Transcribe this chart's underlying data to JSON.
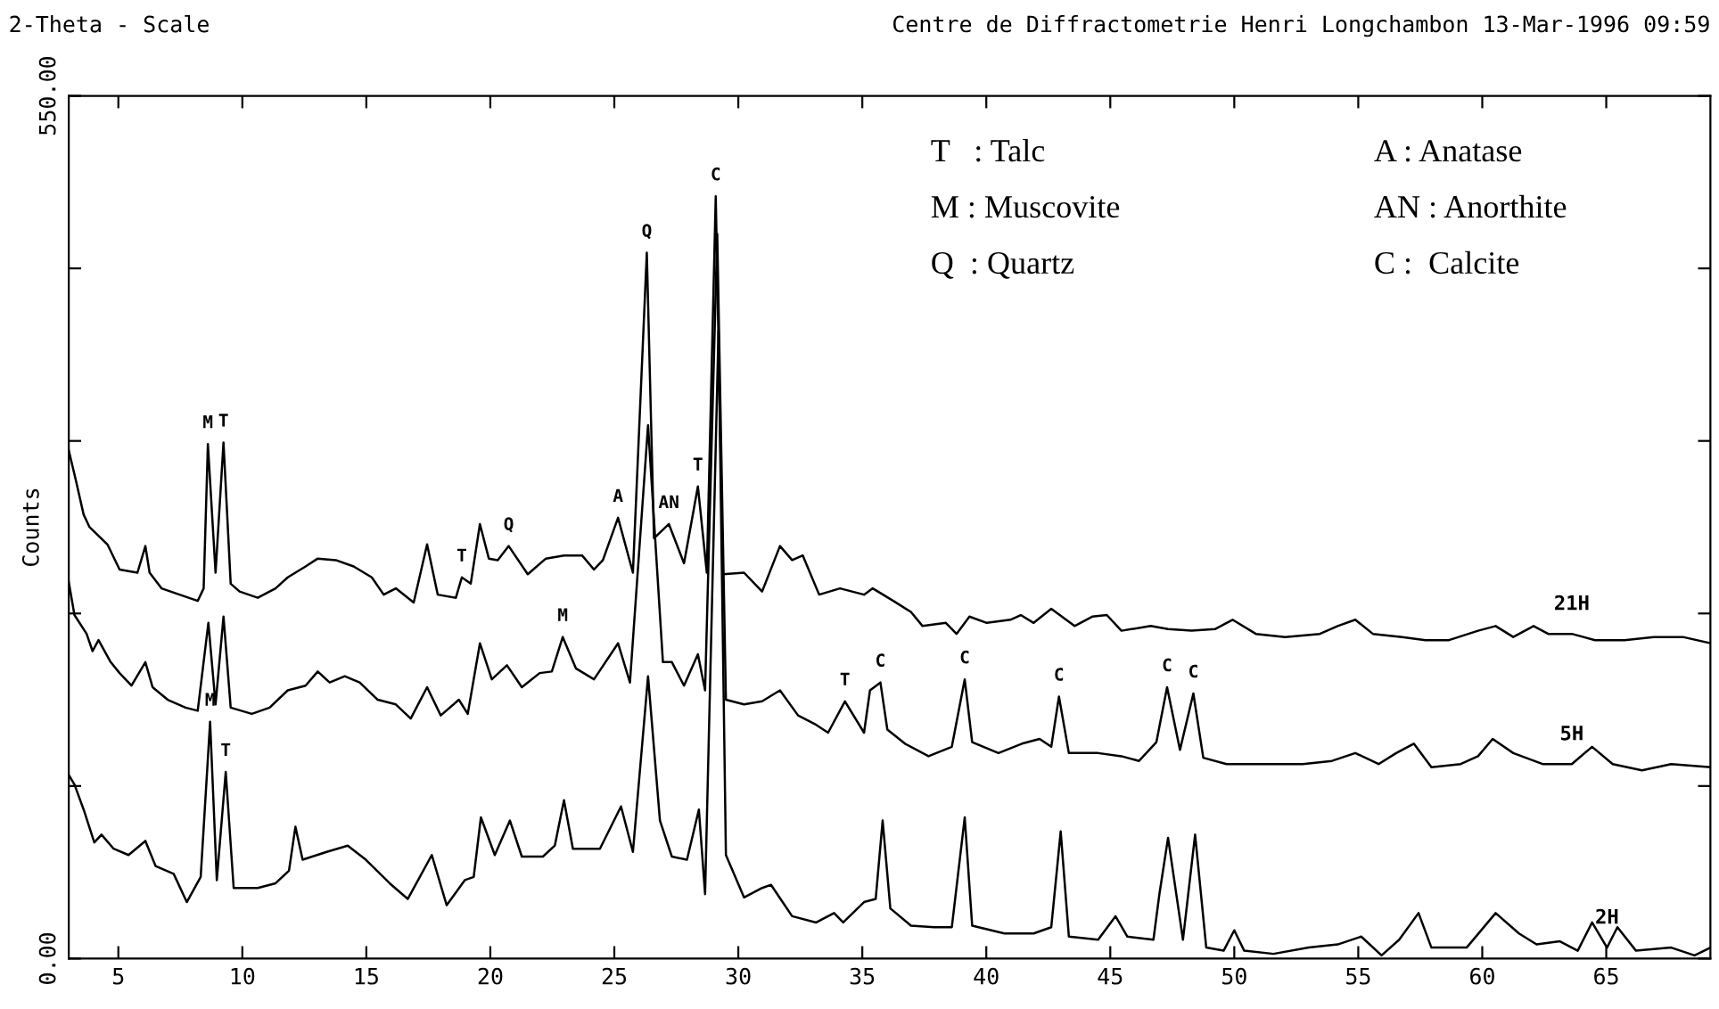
{
  "chart_data": {
    "type": "line",
    "title": "2-Theta - Scale",
    "subtitle": "Centre de Diffractometrie Henri Longchambon 13-Mar-1996 09:59",
    "ylabel": "Counts",
    "xlim": [
      3,
      69.2
    ],
    "ylim": [
      0,
      550
    ],
    "xticks": [
      5,
      10,
      15,
      20,
      25,
      30,
      35,
      40,
      45,
      50,
      55,
      60,
      65
    ],
    "yticks": [
      {
        "value": 0,
        "label": "0.00"
      },
      {
        "value": 110,
        "label": null
      },
      {
        "value": 220,
        "label": null
      },
      {
        "value": 330,
        "label": null
      },
      {
        "value": 440,
        "label": null
      },
      {
        "value": 550,
        "label": "550.00"
      }
    ],
    "grid": false,
    "legend": false,
    "marker": "none",
    "line_style": "solid",
    "series": [
      {
        "name": "21H",
        "color": "#000000",
        "x": [
          3.0,
          3.3,
          3.6,
          3.84,
          4.56,
          5.05,
          5.77,
          6.09,
          6.26,
          6.74,
          7.47,
          8.2,
          8.44,
          8.61,
          8.92,
          9.24,
          9.53,
          9.89,
          10.62,
          11.34,
          11.83,
          12.55,
          13.04,
          13.77,
          14.49,
          15.22,
          15.7,
          16.19,
          16.91,
          17.45,
          17.88,
          18.61,
          18.85,
          19.21,
          19.58,
          19.94,
          20.3,
          20.74,
          21.51,
          22.24,
          22.97,
          23.7,
          24.18,
          24.54,
          25.15,
          25.75,
          26.31,
          26.6,
          27.2,
          27.81,
          28.37,
          28.73,
          29.09,
          29.38,
          30.23,
          30.96,
          31.68,
          32.17,
          32.6,
          33.26,
          34.1,
          35.07,
          35.42,
          36.25,
          36.96,
          37.43,
          38.37,
          38.8,
          39.32,
          40.02,
          40.97,
          41.39,
          41.91,
          42.62,
          43.56,
          44.27,
          44.86,
          45.45,
          46.63,
          47.33,
          48.28,
          49.22,
          49.93,
          50.87,
          52.05,
          53.45,
          54.17,
          54.88,
          55.59,
          56.77,
          57.71,
          58.66,
          59.83,
          60.54,
          61.25,
          62.07,
          62.66,
          63.61,
          64.55,
          65.73,
          66.91,
          68.09,
          69.2
        ],
        "values": [
          324,
          304,
          283,
          275,
          264,
          248,
          246,
          263,
          246,
          236,
          232,
          228,
          236,
          328,
          246,
          329,
          239,
          234,
          230,
          236,
          243,
          250,
          255,
          254,
          250,
          243,
          232,
          236,
          227,
          264,
          232,
          230,
          243,
          239,
          277,
          255,
          254,
          263,
          245,
          255,
          257,
          257,
          248,
          254,
          281,
          246,
          450,
          268,
          277,
          252,
          301,
          246,
          486,
          245,
          246,
          234,
          263,
          254,
          257,
          232,
          236,
          232,
          236,
          228,
          221,
          212,
          214,
          207,
          218,
          214,
          216,
          219,
          214,
          223,
          212,
          218,
          219,
          209,
          212,
          210,
          209,
          210,
          216,
          207,
          205,
          207,
          212,
          216,
          207,
          205,
          203,
          203,
          209,
          212,
          205,
          212,
          207,
          207,
          203,
          203,
          205,
          205,
          201
        ]
      },
      {
        "name": "5H",
        "color": "#000000",
        "x": [
          3.0,
          3.23,
          3.72,
          3.96,
          4.2,
          4.69,
          5.05,
          5.53,
          6.09,
          6.38,
          6.99,
          7.71,
          8.2,
          8.63,
          8.92,
          9.24,
          9.53,
          10.38,
          11.1,
          11.83,
          12.55,
          13.04,
          13.52,
          14.13,
          14.73,
          15.46,
          16.19,
          16.79,
          17.45,
          18.0,
          18.73,
          19.09,
          19.58,
          20.06,
          20.67,
          21.27,
          21.99,
          22.48,
          22.92,
          23.45,
          24.18,
          25.15,
          25.63,
          26.36,
          26.96,
          27.32,
          27.81,
          28.37,
          28.66,
          29.15,
          29.5,
          30.23,
          30.96,
          31.68,
          32.41,
          33.14,
          33.62,
          34.3,
          35.07,
          35.31,
          35.73,
          36.01,
          36.72,
          37.67,
          38.61,
          39.13,
          39.43,
          40.49,
          41.44,
          42.15,
          42.62,
          42.93,
          43.33,
          44.51,
          45.45,
          46.16,
          46.86,
          47.29,
          47.81,
          48.35,
          48.75,
          49.69,
          50.64,
          51.58,
          52.76,
          53.94,
          54.88,
          55.82,
          56.53,
          57.24,
          57.95,
          59.13,
          59.83,
          60.42,
          61.25,
          62.43,
          63.61,
          64.43,
          65.26,
          66.44,
          67.62,
          69.2
        ],
        "values": [
          240,
          219,
          207,
          196,
          203,
          189,
          182,
          174,
          189,
          173,
          165,
          160,
          158,
          214,
          162,
          218,
          160,
          156,
          160,
          171,
          174,
          183,
          176,
          180,
          176,
          165,
          162,
          153,
          173,
          155,
          165,
          156,
          201,
          178,
          187,
          173,
          182,
          183,
          205,
          185,
          178,
          201,
          176,
          340,
          189,
          189,
          174,
          194,
          171,
          462,
          165,
          162,
          164,
          171,
          155,
          149,
          144,
          164,
          144,
          171,
          176,
          146,
          137,
          129,
          135,
          178,
          138,
          131,
          137,
          140,
          135,
          167,
          131,
          131,
          129,
          126,
          138,
          173,
          133,
          169,
          128,
          124,
          124,
          124,
          124,
          126,
          131,
          124,
          131,
          137,
          122,
          124,
          129,
          140,
          131,
          124,
          124,
          135,
          124,
          120,
          124,
          122
        ]
      },
      {
        "name": "2H",
        "color": "#000000",
        "x": [
          3.0,
          3.23,
          3.6,
          4.03,
          4.32,
          4.81,
          5.41,
          6.09,
          6.5,
          7.23,
          7.76,
          8.32,
          8.7,
          8.97,
          9.33,
          9.65,
          10.62,
          11.34,
          11.88,
          12.14,
          12.43,
          13.4,
          14.25,
          14.98,
          15.94,
          16.67,
          17.64,
          18.24,
          18.97,
          19.33,
          19.62,
          20.18,
          20.79,
          21.27,
          22.12,
          22.6,
          22.97,
          23.33,
          24.42,
          25.27,
          25.75,
          26.36,
          26.84,
          27.32,
          27.93,
          28.41,
          28.66,
          29.2,
          29.5,
          30.23,
          30.96,
          31.32,
          32.17,
          33.14,
          33.86,
          34.23,
          35.07,
          35.54,
          35.82,
          36.13,
          36.96,
          37.9,
          38.61,
          39.13,
          39.43,
          40.73,
          41.91,
          42.62,
          43.0,
          43.33,
          44.51,
          45.21,
          45.69,
          46.74,
          46.98,
          47.33,
          47.93,
          48.42,
          48.87,
          49.57,
          50.0,
          50.4,
          51.58,
          53.0,
          54.17,
          55.12,
          55.94,
          56.65,
          57.43,
          57.95,
          59.37,
          60.54,
          61.48,
          62.19,
          63.13,
          63.85,
          64.43,
          65.03,
          65.45,
          66.2,
          67.62,
          68.56,
          69.2
        ],
        "values": [
          117,
          111,
          95,
          74,
          79,
          70,
          66,
          75,
          59,
          54,
          36,
          52,
          151,
          50,
          119,
          45,
          45,
          48,
          56,
          84,
          63,
          68,
          72,
          63,
          48,
          38,
          66,
          34,
          50,
          52,
          90,
          66,
          88,
          65,
          65,
          72,
          101,
          70,
          70,
          97,
          68,
          180,
          88,
          65,
          63,
          95,
          41,
          400,
          66,
          39,
          45,
          47,
          27,
          23,
          29,
          23,
          36,
          38,
          88,
          32,
          21,
          20,
          20,
          90,
          21,
          16,
          16,
          20,
          81,
          14,
          12,
          27,
          14,
          12,
          41,
          77,
          12,
          79,
          7,
          5,
          18,
          5,
          3,
          7,
          9,
          14,
          2,
          12,
          29,
          7,
          7,
          29,
          16,
          9,
          11,
          5,
          23,
          7,
          20,
          5,
          7,
          2,
          7
        ]
      }
    ],
    "annotations": [
      "T   : Talc",
      "M : Muscovite",
      "Q  : Quartz",
      "A : Anatase",
      "AN : Anorthite",
      "C :  Calcite",
      {
        "text": "M",
        "x": 8.61,
        "y": 328
      },
      {
        "text": "T",
        "x": 9.24,
        "y": 329
      },
      {
        "text": "T",
        "x": 18.85,
        "y": 243
      },
      {
        "text": "Q",
        "x": 20.74,
        "y": 263
      },
      {
        "text": "A",
        "x": 25.15,
        "y": 281
      },
      {
        "text": "Q",
        "x": 26.31,
        "y": 450
      },
      {
        "text": "AN",
        "x": 27.2,
        "y": 277
      },
      {
        "text": "T",
        "x": 28.37,
        "y": 301
      },
      {
        "text": "C",
        "x": 29.09,
        "y": 486
      },
      {
        "text": "M",
        "x": 22.92,
        "y": 205
      },
      {
        "text": "T",
        "x": 34.3,
        "y": 164
      },
      {
        "text": "C",
        "x": 35.73,
        "y": 176
      },
      {
        "text": "C",
        "x": 39.13,
        "y": 178
      },
      {
        "text": "C",
        "x": 42.93,
        "y": 167
      },
      {
        "text": "C",
        "x": 47.29,
        "y": 173
      },
      {
        "text": "C",
        "x": 48.35,
        "y": 169
      },
      {
        "text": "M",
        "x": 8.7,
        "y": 151
      },
      {
        "text": "T",
        "x": 9.33,
        "y": 119
      }
    ]
  }
}
